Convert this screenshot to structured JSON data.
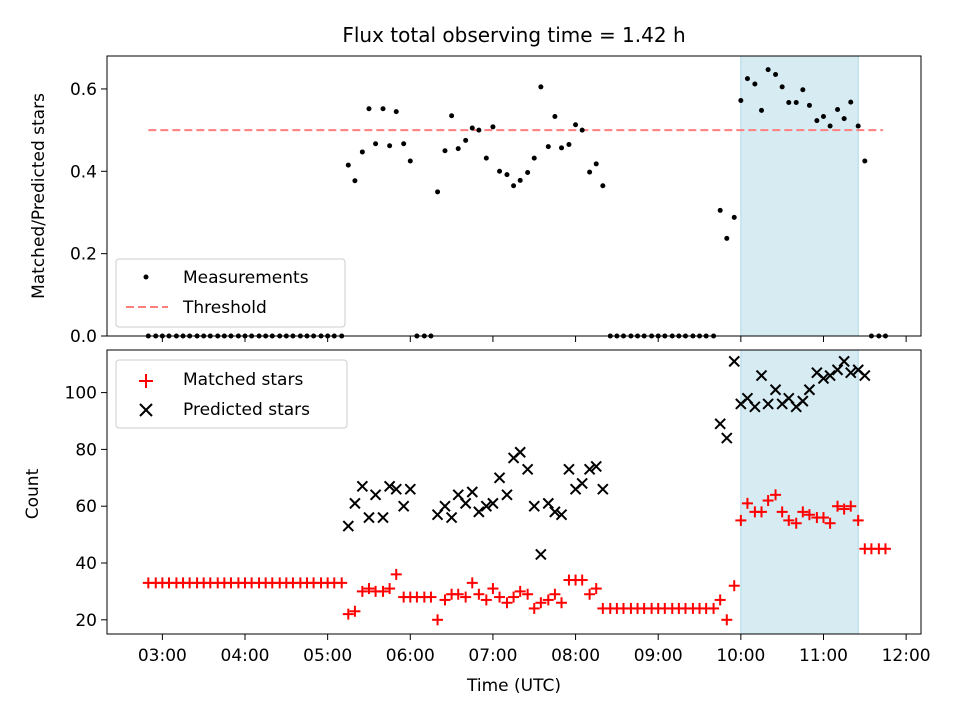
{
  "chart_data": [
    {
      "type": "scatter",
      "title": "Flux total observing time = 1.42 h",
      "ylabel": "Matched/Predicted stars",
      "ylim": [
        0,
        0.68
      ],
      "yticks": [
        "0.0",
        "0.2",
        "0.4",
        "0.6"
      ],
      "xlim": [
        2.33,
        12.18
      ],
      "threshold": {
        "name": "Threshold",
        "value": 0.5,
        "x_range": [
          2.83,
          11.72
        ],
        "color": "#ff7f7f"
      },
      "highlight_span": [
        10.0,
        11.42
      ],
      "highlight_color": "#add8e6",
      "legend_location": "lower-left",
      "series": [
        {
          "name": "Measurements",
          "color": "#000000",
          "points": [
            [
              2.83,
              0
            ],
            [
              2.92,
              0
            ],
            [
              3.0,
              0
            ],
            [
              3.08,
              0
            ],
            [
              3.17,
              0
            ],
            [
              3.25,
              0
            ],
            [
              3.33,
              0
            ],
            [
              3.42,
              0
            ],
            [
              3.5,
              0
            ],
            [
              3.58,
              0
            ],
            [
              3.67,
              0
            ],
            [
              3.75,
              0
            ],
            [
              3.83,
              0
            ],
            [
              3.92,
              0
            ],
            [
              4.0,
              0
            ],
            [
              4.08,
              0
            ],
            [
              4.17,
              0
            ],
            [
              4.25,
              0
            ],
            [
              4.33,
              0
            ],
            [
              4.42,
              0
            ],
            [
              4.5,
              0
            ],
            [
              4.58,
              0
            ],
            [
              4.67,
              0
            ],
            [
              4.75,
              0
            ],
            [
              4.83,
              0
            ],
            [
              4.92,
              0
            ],
            [
              5.0,
              0
            ],
            [
              5.08,
              0
            ],
            [
              5.17,
              0
            ],
            [
              5.25,
              0.415
            ],
            [
              5.33,
              0.377
            ],
            [
              5.42,
              0.447
            ],
            [
              5.5,
              0.552
            ],
            [
              5.58,
              0.467
            ],
            [
              5.67,
              0.552
            ],
            [
              5.75,
              0.462
            ],
            [
              5.83,
              0.545
            ],
            [
              5.92,
              0.467
            ],
            [
              6.0,
              0.425
            ],
            [
              6.08,
              0
            ],
            [
              6.17,
              0
            ],
            [
              6.25,
              0
            ],
            [
              6.33,
              0.35
            ],
            [
              6.42,
              0.45
            ],
            [
              6.5,
              0.535
            ],
            [
              6.58,
              0.455
            ],
            [
              6.67,
              0.475
            ],
            [
              6.75,
              0.505
            ],
            [
              6.83,
              0.5
            ],
            [
              6.92,
              0.432
            ],
            [
              7.0,
              0.508
            ],
            [
              7.08,
              0.4
            ],
            [
              7.17,
              0.392
            ],
            [
              7.25,
              0.365
            ],
            [
              7.33,
              0.378
            ],
            [
              7.42,
              0.397
            ],
            [
              7.5,
              0.432
            ],
            [
              7.58,
              0.605
            ],
            [
              7.67,
              0.46
            ],
            [
              7.75,
              0.533
            ],
            [
              7.83,
              0.457
            ],
            [
              7.92,
              0.465
            ],
            [
              8.0,
              0.513
            ],
            [
              8.08,
              0.5
            ],
            [
              8.17,
              0.398
            ],
            [
              8.25,
              0.418
            ],
            [
              8.33,
              0.365
            ],
            [
              8.42,
              0
            ],
            [
              8.5,
              0
            ],
            [
              8.58,
              0
            ],
            [
              8.67,
              0
            ],
            [
              8.75,
              0
            ],
            [
              8.83,
              0
            ],
            [
              8.92,
              0
            ],
            [
              9.0,
              0
            ],
            [
              9.08,
              0
            ],
            [
              9.17,
              0
            ],
            [
              9.25,
              0
            ],
            [
              9.33,
              0
            ],
            [
              9.42,
              0
            ],
            [
              9.5,
              0
            ],
            [
              9.58,
              0
            ],
            [
              9.67,
              0
            ],
            [
              9.75,
              0.305
            ],
            [
              9.83,
              0.237
            ],
            [
              9.92,
              0.288
            ],
            [
              10.0,
              0.572
            ],
            [
              10.08,
              0.625
            ],
            [
              10.17,
              0.612
            ],
            [
              10.25,
              0.548
            ],
            [
              10.33,
              0.647
            ],
            [
              10.42,
              0.635
            ],
            [
              10.5,
              0.605
            ],
            [
              10.58,
              0.567
            ],
            [
              10.67,
              0.567
            ],
            [
              10.75,
              0.598
            ],
            [
              10.83,
              0.56
            ],
            [
              10.92,
              0.523
            ],
            [
              11.0,
              0.533
            ],
            [
              11.08,
              0.51
            ],
            [
              11.17,
              0.55
            ],
            [
              11.25,
              0.528
            ],
            [
              11.33,
              0.568
            ],
            [
              11.42,
              0.51
            ],
            [
              11.5,
              0.425
            ],
            [
              11.58,
              0
            ],
            [
              11.67,
              0
            ],
            [
              11.75,
              0
            ]
          ]
        }
      ]
    },
    {
      "type": "scatter",
      "xlabel": "Time (UTC)",
      "ylabel": "Count",
      "ylim": [
        15,
        115
      ],
      "yticks": [
        "20",
        "40",
        "60",
        "80",
        "100"
      ],
      "xlim": [
        2.33,
        12.18
      ],
      "xticks": [
        "03:00",
        "04:00",
        "05:00",
        "06:00",
        "07:00",
        "08:00",
        "09:00",
        "10:00",
        "11:00",
        "12:00"
      ],
      "highlight_span": [
        10.0,
        11.42
      ],
      "highlight_color": "#add8e6",
      "legend_location": "upper-left",
      "series": [
        {
          "name": "Matched stars",
          "marker": "plus",
          "color": "#ff0000",
          "points": [
            [
              2.83,
              33
            ],
            [
              2.92,
              33
            ],
            [
              3.0,
              33
            ],
            [
              3.08,
              33
            ],
            [
              3.17,
              33
            ],
            [
              3.25,
              33
            ],
            [
              3.33,
              33
            ],
            [
              3.42,
              33
            ],
            [
              3.5,
              33
            ],
            [
              3.58,
              33
            ],
            [
              3.67,
              33
            ],
            [
              3.75,
              33
            ],
            [
              3.83,
              33
            ],
            [
              3.92,
              33
            ],
            [
              4.0,
              33
            ],
            [
              4.08,
              33
            ],
            [
              4.17,
              33
            ],
            [
              4.25,
              33
            ],
            [
              4.33,
              33
            ],
            [
              4.42,
              33
            ],
            [
              4.5,
              33
            ],
            [
              4.58,
              33
            ],
            [
              4.67,
              33
            ],
            [
              4.75,
              33
            ],
            [
              4.83,
              33
            ],
            [
              4.92,
              33
            ],
            [
              5.0,
              33
            ],
            [
              5.08,
              33
            ],
            [
              5.17,
              33
            ],
            [
              5.25,
              22
            ],
            [
              5.33,
              23
            ],
            [
              5.42,
              30
            ],
            [
              5.5,
              31
            ],
            [
              5.58,
              30
            ],
            [
              5.67,
              30
            ],
            [
              5.75,
              31
            ],
            [
              5.83,
              36
            ],
            [
              5.92,
              28
            ],
            [
              6.0,
              28
            ],
            [
              6.08,
              28
            ],
            [
              6.17,
              28
            ],
            [
              6.25,
              28
            ],
            [
              6.33,
              20
            ],
            [
              6.42,
              27
            ],
            [
              6.5,
              29
            ],
            [
              6.58,
              29
            ],
            [
              6.67,
              28
            ],
            [
              6.75,
              33
            ],
            [
              6.83,
              29
            ],
            [
              6.92,
              27
            ],
            [
              7.0,
              31
            ],
            [
              7.08,
              28
            ],
            [
              7.17,
              26
            ],
            [
              7.25,
              28
            ],
            [
              7.33,
              30
            ],
            [
              7.42,
              29
            ],
            [
              7.5,
              24
            ],
            [
              7.58,
              26
            ],
            [
              7.67,
              27
            ],
            [
              7.75,
              29
            ],
            [
              7.83,
              26
            ],
            [
              7.92,
              34
            ],
            [
              8.0,
              34
            ],
            [
              8.08,
              34
            ],
            [
              8.17,
              29
            ],
            [
              8.25,
              31
            ],
            [
              8.33,
              24
            ],
            [
              8.42,
              24
            ],
            [
              8.5,
              24
            ],
            [
              8.58,
              24
            ],
            [
              8.67,
              24
            ],
            [
              8.75,
              24
            ],
            [
              8.83,
              24
            ],
            [
              8.92,
              24
            ],
            [
              9.0,
              24
            ],
            [
              9.08,
              24
            ],
            [
              9.17,
              24
            ],
            [
              9.25,
              24
            ],
            [
              9.33,
              24
            ],
            [
              9.42,
              24
            ],
            [
              9.5,
              24
            ],
            [
              9.58,
              24
            ],
            [
              9.67,
              24
            ],
            [
              9.75,
              27
            ],
            [
              9.83,
              20
            ],
            [
              9.92,
              32
            ],
            [
              10.0,
              55
            ],
            [
              10.08,
              61
            ],
            [
              10.17,
              58
            ],
            [
              10.25,
              58
            ],
            [
              10.33,
              62
            ],
            [
              10.42,
              64
            ],
            [
              10.5,
              58
            ],
            [
              10.58,
              55
            ],
            [
              10.67,
              54
            ],
            [
              10.75,
              58
            ],
            [
              10.83,
              57
            ],
            [
              10.92,
              56
            ],
            [
              11.0,
              56
            ],
            [
              11.08,
              54
            ],
            [
              11.17,
              60
            ],
            [
              11.25,
              59
            ],
            [
              11.33,
              60
            ],
            [
              11.42,
              55
            ],
            [
              11.5,
              45
            ],
            [
              11.58,
              45
            ],
            [
              11.67,
              45
            ],
            [
              11.75,
              45
            ]
          ]
        },
        {
          "name": "Predicted stars",
          "marker": "x",
          "color": "#000000",
          "points": [
            [
              5.25,
              53
            ],
            [
              5.33,
              61
            ],
            [
              5.42,
              67
            ],
            [
              5.5,
              56
            ],
            [
              5.58,
              64
            ],
            [
              5.67,
              56
            ],
            [
              5.75,
              67
            ],
            [
              5.83,
              66
            ],
            [
              5.92,
              60
            ],
            [
              6.0,
              66
            ],
            [
              6.33,
              57
            ],
            [
              6.42,
              60
            ],
            [
              6.5,
              56
            ],
            [
              6.58,
              64
            ],
            [
              6.67,
              61
            ],
            [
              6.75,
              65
            ],
            [
              6.83,
              58
            ],
            [
              6.92,
              60
            ],
            [
              7.0,
              61
            ],
            [
              7.08,
              70
            ],
            [
              7.17,
              64
            ],
            [
              7.25,
              77
            ],
            [
              7.33,
              79
            ],
            [
              7.42,
              73
            ],
            [
              7.5,
              60
            ],
            [
              7.58,
              43
            ],
            [
              7.67,
              61
            ],
            [
              7.75,
              58
            ],
            [
              7.83,
              57
            ],
            [
              7.92,
              73
            ],
            [
              8.0,
              66
            ],
            [
              8.08,
              68
            ],
            [
              8.17,
              73
            ],
            [
              8.25,
              74
            ],
            [
              8.33,
              66
            ],
            [
              9.75,
              89
            ],
            [
              9.83,
              84
            ],
            [
              9.92,
              111
            ],
            [
              10.0,
              96
            ],
            [
              10.08,
              98
            ],
            [
              10.17,
              95
            ],
            [
              10.25,
              106
            ],
            [
              10.33,
              96
            ],
            [
              10.42,
              101
            ],
            [
              10.5,
              96
            ],
            [
              10.58,
              98
            ],
            [
              10.67,
              95
            ],
            [
              10.75,
              97
            ],
            [
              10.83,
              101
            ],
            [
              10.92,
              107
            ],
            [
              11.0,
              105
            ],
            [
              11.08,
              106
            ],
            [
              11.17,
              108
            ],
            [
              11.25,
              111
            ],
            [
              11.33,
              107
            ],
            [
              11.42,
              108
            ],
            [
              11.5,
              106
            ]
          ]
        }
      ]
    }
  ]
}
